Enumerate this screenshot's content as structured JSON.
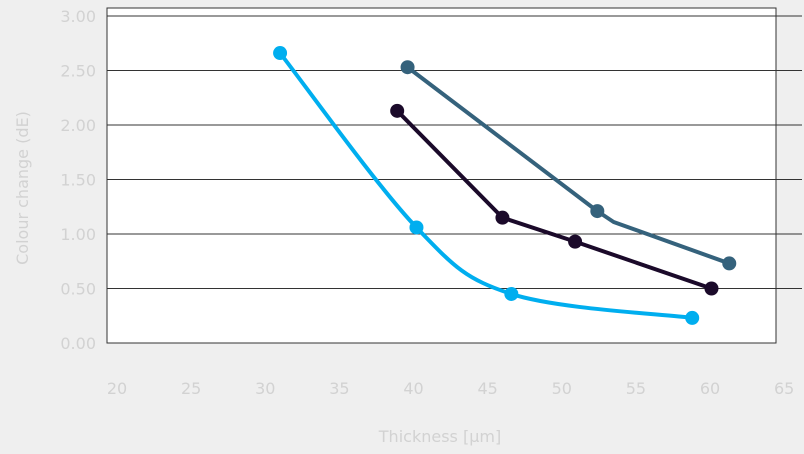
{
  "chart_data": {
    "type": "line",
    "xlabel": "Thickness [µm]",
    "ylabel": "Colour change (dE)",
    "xlim": [
      20,
      65
    ],
    "ylim": [
      0.0,
      3.0
    ],
    "x_ticks": [
      "20",
      "25",
      "30",
      "35",
      "40",
      "45",
      "50",
      "55",
      "60",
      "65"
    ],
    "y_ticks": [
      "0.00",
      "0.50",
      "1.00",
      "1.50",
      "2.00",
      "2.50",
      "3.00"
    ],
    "grid": "horizontal",
    "legend": "none",
    "series": [
      {
        "color": "#00aeef",
        "smooth": true,
        "points": [
          [
            31.0,
            2.66
          ],
          [
            40.2,
            1.06
          ],
          [
            46.6,
            0.45
          ],
          [
            58.8,
            0.23
          ]
        ]
      },
      {
        "color": "#1b0a2a",
        "smooth": false,
        "points": [
          [
            38.9,
            2.13
          ],
          [
            46.0,
            1.15
          ],
          [
            50.9,
            0.93
          ],
          [
            60.1,
            0.5
          ]
        ]
      },
      {
        "color": "#35627c",
        "smooth": false,
        "points": [
          [
            39.6,
            2.53
          ],
          [
            52.4,
            1.21
          ],
          [
            53.5,
            1.11
          ],
          [
            61.3,
            0.73
          ]
        ]
      }
    ]
  }
}
